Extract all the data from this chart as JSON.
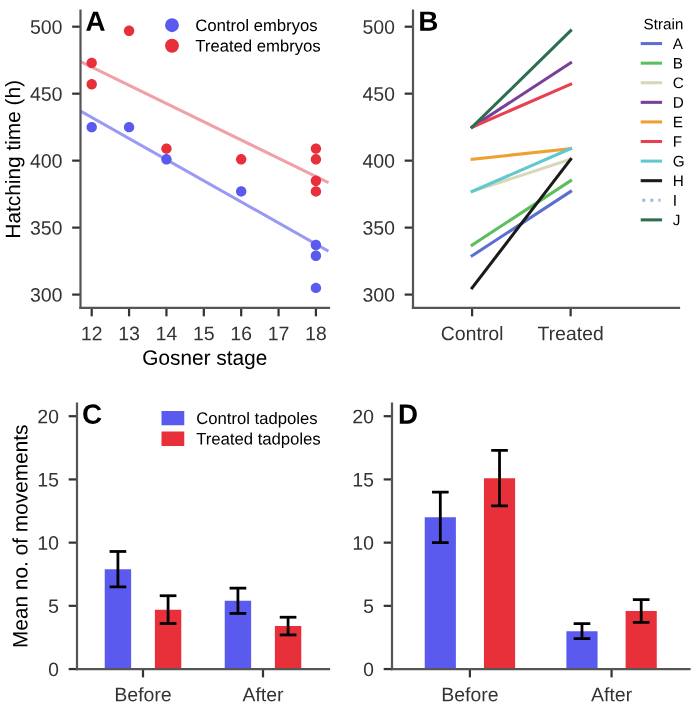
{
  "chart_data": [
    {
      "type": "scatter",
      "annotations": [
        "A"
      ],
      "xlabel": "Gosner stage",
      "ylabel": "Hatching time (h)",
      "xlim": [
        11.7,
        18.35
      ],
      "ylim": [
        290,
        512
      ],
      "xticks": [
        12,
        13,
        14,
        15,
        16,
        17,
        18
      ],
      "yticks": [
        300,
        350,
        400,
        450,
        500
      ],
      "legend": "top right",
      "marker": "circle",
      "grid": false,
      "series": [
        {
          "name": "Control embryos",
          "color": "#5a5aef",
          "x": [
            12,
            13,
            14,
            16,
            18,
            18,
            18
          ],
          "values": [
            425,
            425,
            401,
            377,
            337,
            329,
            305
          ]
        },
        {
          "name": "Treated embryos",
          "color": "#e8303a",
          "x": [
            12,
            12,
            13,
            14,
            16,
            18,
            18,
            18,
            18
          ],
          "values": [
            473,
            457,
            497,
            409,
            401,
            409,
            401,
            385,
            377
          ]
        },
        {
          "type": "line",
          "marker": "none",
          "color": "#9a9af5",
          "x": [
            11.7,
            18.3
          ],
          "values": [
            437,
            333
          ]
        },
        {
          "type": "line",
          "marker": "none",
          "color": "#f0a0a8",
          "x": [
            11.7,
            18.3
          ],
          "values": [
            474,
            384
          ]
        }
      ]
    },
    {
      "type": "line",
      "annotations": [
        "B"
      ],
      "categories": [
        "Control",
        "Treated"
      ],
      "ylim": [
        290,
        512
      ],
      "yticks": [
        300,
        350,
        400,
        450,
        500
      ],
      "legend": "top right",
      "legend_title": "Strain",
      "grid": false,
      "marker": "none",
      "series": [
        {
          "name": "A",
          "color": "#5a6fd0",
          "values": [
            329,
            377
          ]
        },
        {
          "name": "B",
          "color": "#5cbf5c",
          "values": [
            337,
            385
          ]
        },
        {
          "name": "C",
          "color": "#d8d8b8",
          "values": [
            377,
            401
          ]
        },
        {
          "name": "D",
          "color": "#7b3f9a",
          "values": [
            425,
            473
          ]
        },
        {
          "name": "E",
          "color": "#f0a030",
          "values": [
            401,
            409
          ]
        },
        {
          "name": "F",
          "color": "#e84050",
          "values": [
            425,
            457
          ]
        },
        {
          "name": "G",
          "color": "#60c8d0",
          "values": [
            377,
            409
          ]
        },
        {
          "name": "H",
          "color": "#1a1a1a",
          "values": [
            305,
            401
          ]
        },
        {
          "name": "I",
          "color": "#a0b8e0",
          "line_style": "dotted",
          "values": [
            null,
            null
          ]
        },
        {
          "name": "J",
          "color": "#2e6e50",
          "values": [
            425,
            497
          ]
        }
      ]
    },
    {
      "type": "bar",
      "annotations": [
        "C"
      ],
      "ylabel": "Mean no. of movements",
      "categories": [
        "Before",
        "After"
      ],
      "ylim": [
        0,
        21
      ],
      "yticks": [
        0,
        5,
        10,
        15,
        20
      ],
      "legend": "top right",
      "grid": false,
      "series": [
        {
          "name": "Control tadpoles",
          "color": "#5a5aef",
          "values": [
            7.9,
            5.4
          ],
          "errors": [
            1.4,
            1.0
          ]
        },
        {
          "name": "Treated tadpoles",
          "color": "#e8303a",
          "values": [
            4.7,
            3.4
          ],
          "errors": [
            1.1,
            0.7
          ]
        }
      ]
    },
    {
      "type": "bar",
      "annotations": [
        "D"
      ],
      "categories": [
        "Before",
        "After"
      ],
      "ylim": [
        0,
        21
      ],
      "yticks": [
        0,
        5,
        10,
        15,
        20
      ],
      "grid": false,
      "series": [
        {
          "color": "#5a5aef",
          "values": [
            12.0,
            3.0
          ],
          "errors": [
            2.0,
            0.6
          ]
        },
        {
          "color": "#e8303a",
          "values": [
            15.1,
            4.6
          ],
          "errors": [
            2.2,
            0.9
          ]
        }
      ]
    }
  ]
}
